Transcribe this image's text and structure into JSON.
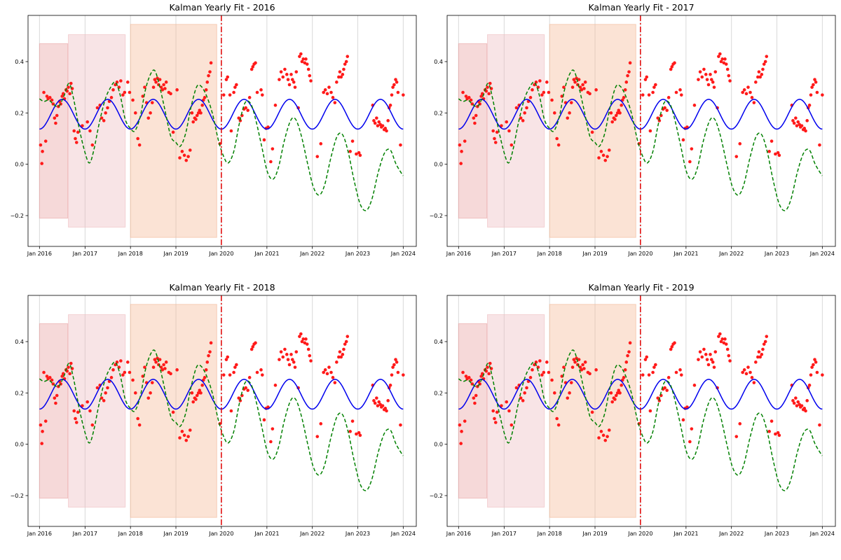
{
  "figure": {
    "colors": {
      "points": "#ff1a1a",
      "smooth_line": "#0000ee",
      "dashed_line": "#008000",
      "vline": "#e00000",
      "band_1": "#e8a0a0",
      "band_2": "#eebcc0",
      "band_3": "#f4b896",
      "grid": "#d9d9d9"
    }
  },
  "chart_data": [
    {
      "type": "scatter",
      "title": "Kalman Yearly Fit - 2016",
      "x_tick_labels": [
        "Jan 2016",
        "Jan 2017",
        "Jan 2018",
        "Jan 2019",
        "Jan 2020",
        "Jan 2021",
        "Jan 2022",
        "Jan 2023",
        "Jan 2024"
      ],
      "y_tick_labels": [
        "−0.2",
        "0.0",
        "0.2",
        "0.4"
      ],
      "xlim": [
        "2015-10-01",
        "2024-04-15"
      ],
      "ylim": [
        -0.32,
        0.58
      ],
      "grid": "vertical",
      "cutoff_date": "2020-01-01",
      "shaded_regions": [
        {
          "start": "2016-01-01",
          "end": "2016-08-15",
          "low": -0.21,
          "high": 0.47
        },
        {
          "start": "2016-08-20",
          "end": "2017-11-20",
          "low": -0.245,
          "high": 0.505
        },
        {
          "start": "2018-01-01",
          "end": "2019-11-25",
          "low": -0.285,
          "high": 0.545
        }
      ],
      "series": []
    },
    {
      "type": "scatter",
      "title": "Kalman Yearly Fit - 2017",
      "x_tick_labels": [
        "Jan 2016",
        "Jan 2017",
        "Jan 2018",
        "Jan 2019",
        "Jan 2020",
        "Jan 2021",
        "Jan 2022",
        "Jan 2023",
        "Jan 2024"
      ],
      "y_tick_labels": [
        "−0.2",
        "0.0",
        "0.2",
        "0.4"
      ],
      "xlim": [
        "2015-10-01",
        "2024-04-15"
      ],
      "ylim": [
        -0.32,
        0.58
      ],
      "grid": "vertical",
      "cutoff_date": "2020-01-01",
      "shaded_regions": [
        {
          "start": "2016-01-01",
          "end": "2016-08-15",
          "low": -0.21,
          "high": 0.47
        },
        {
          "start": "2016-08-20",
          "end": "2017-11-20",
          "low": -0.245,
          "high": 0.505
        },
        {
          "start": "2018-01-01",
          "end": "2019-11-25",
          "low": -0.285,
          "high": 0.545
        }
      ],
      "series": []
    },
    {
      "type": "scatter",
      "title": "Kalman Yearly Fit - 2018",
      "x_tick_labels": [
        "Jan 2016",
        "Jan 2017",
        "Jan 2018",
        "Jan 2019",
        "Jan 2020",
        "Jan 2021",
        "Jan 2022",
        "Jan 2023",
        "Jan 2024"
      ],
      "y_tick_labels": [
        "−0.2",
        "0.0",
        "0.2",
        "0.4"
      ],
      "xlim": [
        "2015-10-01",
        "2024-04-15"
      ],
      "ylim": [
        -0.32,
        0.58
      ],
      "grid": "vertical",
      "cutoff_date": "2020-01-01",
      "shaded_regions": [
        {
          "start": "2016-01-01",
          "end": "2016-08-15",
          "low": -0.21,
          "high": 0.47
        },
        {
          "start": "2016-08-20",
          "end": "2017-11-20",
          "low": -0.245,
          "high": 0.505
        },
        {
          "start": "2018-01-01",
          "end": "2019-11-25",
          "low": -0.285,
          "high": 0.545
        }
      ],
      "series": []
    },
    {
      "type": "scatter",
      "title": "Kalman Yearly Fit - 2019",
      "x_tick_labels": [
        "Jan 2016",
        "Jan 2017",
        "Jan 2018",
        "Jan 2019",
        "Jan 2020",
        "Jan 2021",
        "Jan 2022",
        "Jan 2023",
        "Jan 2024"
      ],
      "y_tick_labels": [
        "−0.2",
        "0.0",
        "0.2",
        "0.4"
      ],
      "xlim": [
        "2015-10-01",
        "2024-04-15"
      ],
      "ylim": [
        -0.32,
        0.58
      ],
      "grid": "vertical",
      "cutoff_date": "2020-01-01",
      "shaded_regions": [
        {
          "start": "2016-01-01",
          "end": "2016-08-15",
          "low": -0.21,
          "high": 0.47
        },
        {
          "start": "2016-08-20",
          "end": "2017-11-20",
          "low": -0.245,
          "high": 0.505
        },
        {
          "start": "2018-01-01",
          "end": "2019-11-25",
          "low": -0.285,
          "high": 0.545
        }
      ],
      "series": []
    }
  ],
  "series_data": {
    "observations": [
      [
        "2016-01-10",
        0.075
      ],
      [
        "2016-01-20",
        0.003
      ],
      [
        "2016-01-25",
        0.05
      ],
      [
        "2016-02-05",
        0.28
      ],
      [
        "2016-02-20",
        0.09
      ],
      [
        "2016-03-01",
        0.265
      ],
      [
        "2016-03-10",
        0.255
      ],
      [
        "2016-03-25",
        0.26
      ],
      [
        "2016-04-10",
        0.25
      ],
      [
        "2016-04-20",
        0.235
      ],
      [
        "2016-05-01",
        0.18
      ],
      [
        "2016-05-10",
        0.16
      ],
      [
        "2016-05-20",
        0.19
      ],
      [
        "2016-06-01",
        0.225
      ],
      [
        "2016-06-10",
        0.245
      ],
      [
        "2016-06-20",
        0.235
      ],
      [
        "2016-07-01",
        0.265
      ],
      [
        "2016-07-10",
        0.275
      ],
      [
        "2016-07-20",
        0.255
      ],
      [
        "2016-08-01",
        0.29
      ],
      [
        "2016-08-10",
        0.285
      ],
      [
        "2016-08-20",
        0.3
      ],
      [
        "2016-09-01",
        0.275
      ],
      [
        "2016-09-10",
        0.315
      ],
      [
        "2016-09-20",
        0.295
      ],
      [
        "2016-10-05",
        0.13
      ],
      [
        "2016-10-15",
        0.1
      ],
      [
        "2016-10-25",
        0.085
      ],
      [
        "2016-11-05",
        0.125
      ],
      [
        "2016-12-10",
        0.15
      ],
      [
        "2017-01-20",
        0.165
      ],
      [
        "2017-02-10",
        0.13
      ],
      [
        "2017-03-01",
        0.075
      ],
      [
        "2017-04-10",
        0.22
      ],
      [
        "2017-05-01",
        0.23
      ],
      [
        "2017-05-15",
        0.18
      ],
      [
        "2017-06-01",
        0.17
      ],
      [
        "2017-06-15",
        0.2
      ],
      [
        "2017-07-01",
        0.22
      ],
      [
        "2017-07-15",
        0.245
      ],
      [
        "2017-08-01",
        0.26
      ],
      [
        "2017-08-15",
        0.29
      ],
      [
        "2017-09-01",
        0.31
      ],
      [
        "2017-09-15",
        0.32
      ],
      [
        "2017-10-01",
        0.3
      ],
      [
        "2017-10-15",
        0.325
      ],
      [
        "2017-11-01",
        0.27
      ],
      [
        "2017-11-15",
        0.28
      ],
      [
        "2017-12-10",
        0.32
      ],
      [
        "2017-12-25",
        0.28
      ],
      [
        "2018-01-20",
        0.25
      ],
      [
        "2018-02-10",
        0.2
      ],
      [
        "2018-03-01",
        0.1
      ],
      [
        "2018-03-15",
        0.075
      ],
      [
        "2018-04-10",
        0.265
      ],
      [
        "2018-04-25",
        0.3
      ],
      [
        "2018-05-10",
        0.24
      ],
      [
        "2018-05-25",
        0.18
      ],
      [
        "2018-06-10",
        0.2
      ],
      [
        "2018-06-25",
        0.24
      ],
      [
        "2018-07-05",
        0.3
      ],
      [
        "2018-07-15",
        0.33
      ],
      [
        "2018-07-25",
        0.32
      ],
      [
        "2018-08-05",
        0.335
      ],
      [
        "2018-08-15",
        0.31
      ],
      [
        "2018-08-25",
        0.33
      ],
      [
        "2018-09-05",
        0.3
      ],
      [
        "2018-09-15",
        0.29
      ],
      [
        "2018-09-25",
        0.31
      ],
      [
        "2018-10-05",
        0.295
      ],
      [
        "2018-10-15",
        0.32
      ],
      [
        "2018-11-05",
        0.28
      ],
      [
        "2018-11-20",
        0.275
      ],
      [
        "2018-12-10",
        0.125
      ],
      [
        "2019-01-10",
        0.29
      ],
      [
        "2019-02-01",
        0.025
      ],
      [
        "2019-02-20",
        0.05
      ],
      [
        "2019-03-10",
        0.035
      ],
      [
        "2019-03-25",
        0.015
      ],
      [
        "2019-04-10",
        0.03
      ],
      [
        "2019-04-25",
        0.055
      ],
      [
        "2019-05-10",
        0.2
      ],
      [
        "2019-05-20",
        0.165
      ],
      [
        "2019-06-01",
        0.18
      ],
      [
        "2019-06-10",
        0.175
      ],
      [
        "2019-06-20",
        0.19
      ],
      [
        "2019-07-01",
        0.2
      ],
      [
        "2019-07-10",
        0.21
      ],
      [
        "2019-07-20",
        0.2
      ],
      [
        "2019-08-01",
        0.23
      ],
      [
        "2019-08-10",
        0.25
      ],
      [
        "2019-08-20",
        0.26
      ],
      [
        "2019-09-01",
        0.29
      ],
      [
        "2019-09-10",
        0.32
      ],
      [
        "2019-09-20",
        0.345
      ],
      [
        "2019-10-01",
        0.36
      ],
      [
        "2019-10-10",
        0.395
      ],
      [
        "2019-12-20",
        0.08
      ],
      [
        "2020-01-20",
        0.27
      ],
      [
        "2020-02-10",
        0.33
      ],
      [
        "2020-02-20",
        0.34
      ],
      [
        "2020-03-10",
        0.27
      ],
      [
        "2020-03-20",
        0.13
      ],
      [
        "2020-04-10",
        0.28
      ],
      [
        "2020-04-20",
        0.3
      ],
      [
        "2020-05-01",
        0.31
      ],
      [
        "2020-05-20",
        0.18
      ],
      [
        "2020-06-01",
        0.17
      ],
      [
        "2020-06-15",
        0.19
      ],
      [
        "2020-07-01",
        0.215
      ],
      [
        "2020-07-15",
        0.22
      ],
      [
        "2020-08-01",
        0.21
      ],
      [
        "2020-08-15",
        0.26
      ],
      [
        "2020-09-01",
        0.37
      ],
      [
        "2020-09-10",
        0.38
      ],
      [
        "2020-09-20",
        0.39
      ],
      [
        "2020-10-01",
        0.395
      ],
      [
        "2020-10-15",
        0.28
      ],
      [
        "2020-11-15",
        0.29
      ],
      [
        "2020-11-25",
        0.27
      ],
      [
        "2020-12-10",
        0.095
      ],
      [
        "2020-12-25",
        0.14
      ],
      [
        "2021-01-10",
        0.145
      ],
      [
        "2021-02-01",
        0.01
      ],
      [
        "2021-02-15",
        0.06
      ],
      [
        "2021-03-10",
        0.23
      ],
      [
        "2021-04-10",
        0.33
      ],
      [
        "2021-04-25",
        0.36
      ],
      [
        "2021-05-10",
        0.34
      ],
      [
        "2021-05-25",
        0.37
      ],
      [
        "2021-06-10",
        0.35
      ],
      [
        "2021-06-20",
        0.33
      ],
      [
        "2021-07-01",
        0.31
      ],
      [
        "2021-07-15",
        0.35
      ],
      [
        "2021-07-25",
        0.33
      ],
      [
        "2021-08-05",
        0.32
      ],
      [
        "2021-08-15",
        0.3
      ],
      [
        "2021-08-25",
        0.36
      ],
      [
        "2021-09-10",
        0.22
      ],
      [
        "2021-09-20",
        0.42
      ],
      [
        "2021-10-01",
        0.43
      ],
      [
        "2021-10-10",
        0.4
      ],
      [
        "2021-10-20",
        0.41
      ],
      [
        "2021-11-01",
        0.395
      ],
      [
        "2021-11-10",
        0.41
      ],
      [
        "2021-11-20",
        0.39
      ],
      [
        "2021-12-01",
        0.37
      ],
      [
        "2021-12-10",
        0.345
      ],
      [
        "2021-12-20",
        0.325
      ],
      [
        "2022-02-10",
        0.03
      ],
      [
        "2022-03-10",
        0.08
      ],
      [
        "2022-04-01",
        0.28
      ],
      [
        "2022-04-15",
        0.29
      ],
      [
        "2022-05-01",
        0.275
      ],
      [
        "2022-05-15",
        0.3
      ],
      [
        "2022-06-01",
        0.28
      ],
      [
        "2022-06-15",
        0.26
      ],
      [
        "2022-07-01",
        0.24
      ],
      [
        "2022-07-15",
        0.32
      ],
      [
        "2022-08-01",
        0.34
      ],
      [
        "2022-08-10",
        0.36
      ],
      [
        "2022-08-20",
        0.34
      ],
      [
        "2022-09-01",
        0.35
      ],
      [
        "2022-09-10",
        0.37
      ],
      [
        "2022-09-20",
        0.39
      ],
      [
        "2022-10-01",
        0.4
      ],
      [
        "2022-10-10",
        0.42
      ],
      [
        "2022-11-01",
        0.05
      ],
      [
        "2022-11-20",
        0.09
      ],
      [
        "2022-12-20",
        0.04
      ],
      [
        "2023-01-10",
        0.045
      ],
      [
        "2023-01-20",
        0.035
      ],
      [
        "2023-05-01",
        0.23
      ],
      [
        "2023-05-10",
        0.17
      ],
      [
        "2023-05-20",
        0.16
      ],
      [
        "2023-06-01",
        0.18
      ],
      [
        "2023-06-10",
        0.15
      ],
      [
        "2023-06-20",
        0.165
      ],
      [
        "2023-07-01",
        0.155
      ],
      [
        "2023-07-10",
        0.145
      ],
      [
        "2023-07-20",
        0.15
      ],
      [
        "2023-08-01",
        0.135
      ],
      [
        "2023-08-10",
        0.14
      ],
      [
        "2023-08-20",
        0.13
      ],
      [
        "2023-09-01",
        0.17
      ],
      [
        "2023-09-10",
        0.22
      ],
      [
        "2023-09-20",
        0.23
      ],
      [
        "2023-10-01",
        0.27
      ],
      [
        "2023-10-10",
        0.3
      ],
      [
        "2023-10-20",
        0.31
      ],
      [
        "2023-11-01",
        0.33
      ],
      [
        "2023-11-10",
        0.32
      ],
      [
        "2023-11-20",
        0.28
      ],
      [
        "2023-12-10",
        0.075
      ],
      [
        "2024-01-01",
        0.27
      ]
    ],
    "smooth_line": {
      "mean": 0.195,
      "amplitude": 0.058,
      "period_days": 365.25,
      "start": "2016-01-01",
      "end": "2024-01-01"
    },
    "dashed_line": [
      [
        "2016-01-01",
        0.255
      ],
      [
        "2016-02-05",
        0.245
      ],
      [
        "2016-03-15",
        0.25
      ],
      [
        "2016-04-20",
        0.235
      ],
      [
        "2016-06-01",
        0.225
      ],
      [
        "2016-07-15",
        0.265
      ],
      [
        "2016-08-25",
        0.315
      ],
      [
        "2016-10-01",
        0.255
      ],
      [
        "2016-11-15",
        0.14
      ],
      [
        "2017-01-01",
        0.045
      ],
      [
        "2017-02-05",
        0.005
      ],
      [
        "2017-03-10",
        0.05
      ],
      [
        "2017-04-25",
        0.16
      ],
      [
        "2017-06-10",
        0.25
      ],
      [
        "2017-07-20",
        0.295
      ],
      [
        "2017-09-01",
        0.32
      ],
      [
        "2017-10-10",
        0.27
      ],
      [
        "2017-11-20",
        0.175
      ],
      [
        "2017-12-31",
        0.14
      ],
      [
        "2018-02-05",
        0.13
      ],
      [
        "2018-03-20",
        0.185
      ],
      [
        "2018-05-01",
        0.29
      ],
      [
        "2018-06-10",
        0.35
      ],
      [
        "2018-07-15",
        0.365
      ],
      [
        "2018-08-20",
        0.31
      ],
      [
        "2018-10-01",
        0.22
      ],
      [
        "2018-11-20",
        0.11
      ],
      [
        "2019-01-01",
        0.085
      ],
      [
        "2019-02-05",
        0.07
      ],
      [
        "2019-03-20",
        0.12
      ],
      [
        "2019-05-01",
        0.22
      ],
      [
        "2019-06-15",
        0.3
      ],
      [
        "2019-07-20",
        0.305
      ],
      [
        "2019-09-01",
        0.27
      ],
      [
        "2019-10-20",
        0.2
      ],
      [
        "2019-12-10",
        0.09
      ],
      [
        "2020-01-20",
        0.03
      ],
      [
        "2020-02-25",
        0.005
      ],
      [
        "2020-04-10",
        0.05
      ],
      [
        "2020-05-25",
        0.16
      ],
      [
        "2020-07-10",
        0.24
      ],
      [
        "2020-08-25",
        0.235
      ],
      [
        "2020-10-05",
        0.17
      ],
      [
        "2020-11-20",
        0.07
      ],
      [
        "2021-01-05",
        -0.03
      ],
      [
        "2021-02-20",
        -0.058
      ],
      [
        "2021-04-05",
        -0.01
      ],
      [
        "2021-05-20",
        0.09
      ],
      [
        "2021-07-10",
        0.17
      ],
      [
        "2021-08-20",
        0.175
      ],
      [
        "2021-10-05",
        0.11
      ],
      [
        "2021-11-25",
        0.0
      ],
      [
        "2022-01-10",
        -0.09
      ],
      [
        "2022-02-25",
        -0.12
      ],
      [
        "2022-04-10",
        -0.08
      ],
      [
        "2022-06-01",
        0.03
      ],
      [
        "2022-07-20",
        0.11
      ],
      [
        "2022-09-01",
        0.115
      ],
      [
        "2022-10-15",
        0.05
      ],
      [
        "2022-12-01",
        -0.06
      ],
      [
        "2023-01-20",
        -0.155
      ],
      [
        "2023-03-10",
        -0.18
      ],
      [
        "2023-04-25",
        -0.135
      ],
      [
        "2023-06-15",
        -0.03
      ],
      [
        "2023-08-05",
        0.045
      ],
      [
        "2023-09-20",
        0.055
      ],
      [
        "2023-11-05",
        0.0
      ],
      [
        "2023-12-31",
        -0.045
      ]
    ]
  }
}
